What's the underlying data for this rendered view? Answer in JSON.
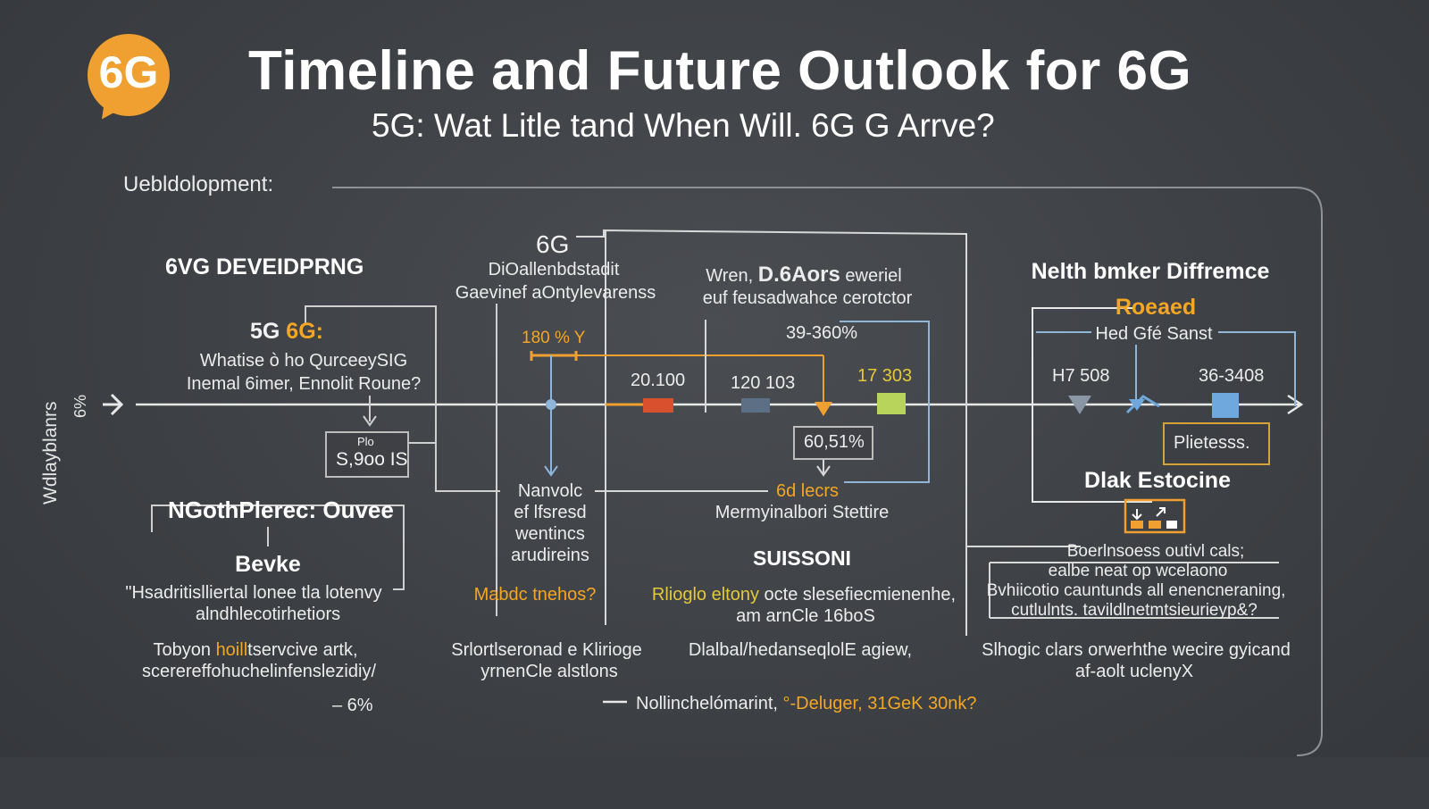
{
  "header": {
    "badge": "6G",
    "title": "Timeline and Future Outlook for 6G",
    "subtitle": "5G: Wat Litle tand When Will. 6G G Arrve?"
  },
  "section_label": "Uebldolopment:",
  "side_label": "Wdlayblanrs",
  "side_label_2": "6%",
  "left_col": {
    "heading": "6VG DEVEIDPRNG",
    "line1_a": "5G ",
    "line1_b": "6G:",
    "line2": "Whatise ò ho QurceeySIG",
    "line3": "Inemal 6imer, Ennolit Roune?",
    "box_line1": "Plo",
    "box_line2": "S,9oo IS",
    "sub_heading": "NGothPlerec: Ouvee",
    "bevke": "Bevke",
    "quote1": "\"Hsadritislliertal lonee tla lotenvy",
    "quote2": "alndhlecotirhetiors",
    "foot1_a": "Tobyon ",
    "foot1_b": "hoill",
    "foot1_c": "tservcive artk,",
    "foot2": "scerereffohuchelinfenslezidiy/",
    "pct": "– 6%"
  },
  "mid_col": {
    "heading": "6G",
    "line1": "DiOallenbdstadit",
    "line2": "Gaevinef aOntylevarenss",
    "pct_label": "180 % Y",
    "label_a1": "Nanvolc",
    "label_a2": "ef lfsresd",
    "label_a3": "wentincs",
    "label_a4": "arudireins",
    "question": "Mabdc tnehos?",
    "foot1": "Srlortlseronad e Klirioge",
    "foot2": "yrnenCle alstlons"
  },
  "center_col": {
    "line1_a": "Wren, ",
    "line1_b": "D.6Aors",
    "line1_c": " eweriel",
    "line2": "euf feusadwahce cerotctor",
    "pct": "39-360%",
    "val_a": "20.100",
    "val_b": "120 103",
    "val_c": "17 303",
    "box_val": "60,51%",
    "orange_label": "6d lecrs",
    "caption": "Mermyinalbori Stettire",
    "heading2": "SUISSONI",
    "line3_a": "Rlioglo eltony",
    "line3_b": " octe slesefiecmienenhe,",
    "line4": "am arnCle 16boS",
    "foot1": "Dlalbal/hedanseqlolE agiew,",
    "bottom_a": "Nollinchelómarint, ",
    "bottom_b": "°-Deluger, 31GeK 30nk?"
  },
  "right_col": {
    "heading": "Nelth bmker Diffremce",
    "orange": "Roeaed",
    "sub": "Hed Gfé Sanst",
    "val_a": "H7 508",
    "val_b": "36-3408",
    "box": "Plietesss.",
    "heading2": "Dlak Estocine",
    "text1": "Boerlnsoess outivl cals;",
    "text2": "ealbe neat op wcelaono",
    "text3": "Bvhiicotio cauntunds  all enencneraning,",
    "text4": "cutlulnts. tavildlnetmtsieurieyp&?",
    "foot1": "Slhogic clars orwerhthe wecire gyicand",
    "foot2": "af-aolt uclenyX"
  },
  "colors": {
    "accent_orange": "#f5a623",
    "red_marker": "#d9502f",
    "slate_marker": "#5d6f85",
    "lime_marker": "#b8d45a",
    "blue_marker": "#6fa8dc",
    "line_blue": "#8fb6d8",
    "line_orange": "#f0a030"
  }
}
